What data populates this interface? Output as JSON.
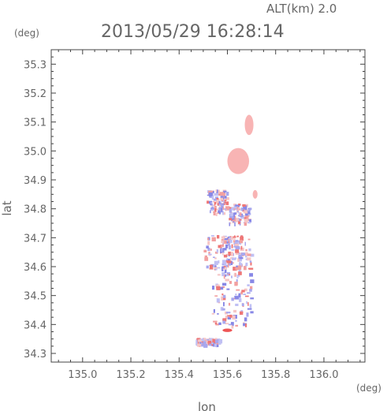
{
  "header": {
    "altitude_label": "ALT(km) 2.0",
    "datetime": "2013/05/29 16:28:14"
  },
  "axes": {
    "x_title": "lon",
    "y_title": "lat",
    "x_unit": "(deg)",
    "y_unit": "(deg)",
    "x_ticks": [
      "135.0",
      "135.2",
      "135.4",
      "135.6",
      "135.8",
      "136.0"
    ],
    "y_ticks": [
      "34.3",
      "34.4",
      "34.5",
      "34.6",
      "34.7",
      "34.8",
      "34.9",
      "35.0",
      "35.1",
      "35.2",
      "35.3"
    ],
    "xlim": [
      134.87,
      136.17
    ],
    "ylim": [
      34.27,
      35.35
    ]
  },
  "chart_data": {
    "type": "heatmap",
    "colors": {
      "positive_light": "#f8b4b4",
      "positive_strong": "#ee5555",
      "negative_light": "#b8b8f8",
      "negative_strong": "#6666dd"
    },
    "regions": [
      {
        "lon": 135.645,
        "lat": 34.965,
        "r_lon": 0.045,
        "r_lat": 0.045,
        "tone": "positive_light"
      },
      {
        "lon": 135.69,
        "lat": 35.09,
        "r_lon": 0.018,
        "r_lat": 0.035,
        "tone": "positive_light"
      },
      {
        "lon": 135.6,
        "lat": 34.38,
        "r_lon": 0.02,
        "r_lat": 0.006,
        "tone": "positive_strong"
      },
      {
        "lon": 135.715,
        "lat": 34.85,
        "r_lon": 0.01,
        "r_lat": 0.015,
        "tone": "positive_light"
      }
    ]
  }
}
